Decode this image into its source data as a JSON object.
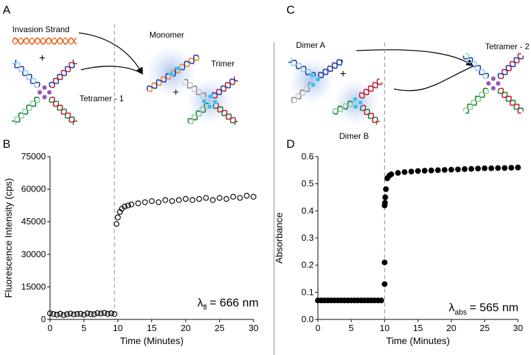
{
  "diagram": {
    "panel_a": "A",
    "panel_b": "B",
    "panel_c": "C",
    "panel_d": "D",
    "invasion_strand": "Invasion Strand",
    "plus": "+",
    "tetramer_1": "Tetramer - 1",
    "monomer": "Monomer",
    "trimer": "Trimer",
    "dimer_a": "Dimer A",
    "dimer_b": "Dimer B",
    "tetramer_2": "Tetramer - 2"
  },
  "chart_data": [
    {
      "type": "scatter",
      "panel": "B",
      "xlabel": "Time (Minutes)",
      "ylabel": "Fluorescence Intensity (cps)",
      "xlim": [
        0,
        30
      ],
      "xticks": [
        0,
        5,
        10,
        15,
        20,
        25,
        30
      ],
      "ylim": [
        0,
        75000
      ],
      "yticks": [
        0,
        15000,
        30000,
        45000,
        60000,
        75000
      ],
      "vline": 9.5,
      "marker": "open",
      "color": "#000000",
      "annotation": {
        "symbol": "λ",
        "subscript": "fl",
        "text": "= 666 nm"
      },
      "x": [
        0,
        0.5,
        1,
        1.5,
        2,
        2.5,
        3,
        3.5,
        4,
        4.5,
        5,
        5.5,
        6,
        6.5,
        7,
        7.5,
        8,
        8.5,
        9,
        9.5,
        9.8,
        10,
        10.3,
        10.6,
        11,
        11.5,
        12,
        13,
        14,
        15,
        16,
        17,
        18,
        19,
        20,
        21,
        22,
        23,
        24,
        25,
        26,
        27,
        28,
        29,
        30
      ],
      "y": [
        2800,
        2500,
        2200,
        2600,
        2000,
        2400,
        2700,
        2300,
        2500,
        2600,
        2200,
        2800,
        2500,
        2400,
        2900,
        2700,
        3000,
        2600,
        2800,
        2500,
        44000,
        47000,
        49500,
        51000,
        52000,
        52500,
        53000,
        53500,
        54000,
        54500,
        54000,
        55000,
        54500,
        55000,
        55500,
        55000,
        55500,
        56000,
        55000,
        56000,
        55500,
        56500,
        56000,
        57000,
        56500
      ]
    },
    {
      "type": "scatter",
      "panel": "D",
      "xlabel": "Time (Minutes)",
      "ylabel": "Absorbance",
      "xlim": [
        0,
        30
      ],
      "xticks": [
        0,
        5,
        10,
        15,
        20,
        25,
        30
      ],
      "ylim": [
        0,
        0.6
      ],
      "yticks": [
        {
          "value": 0,
          "label": "0.0"
        },
        0.1,
        0.2,
        0.3,
        0.4,
        0.5,
        0.6
      ],
      "vline": 10,
      "marker": "filled",
      "color": "#000000",
      "annotation": {
        "symbol": "λ",
        "subscript": "abs",
        "text": "= 565 nm"
      },
      "x": [
        0,
        0.5,
        1,
        1.5,
        2,
        2.5,
        3,
        3.5,
        4,
        4.5,
        5,
        5.5,
        6,
        6.5,
        7,
        7.5,
        8,
        8.5,
        9,
        9.5,
        10,
        10,
        10,
        10.05,
        10.1,
        10.2,
        10.4,
        10.7,
        11,
        12,
        13,
        14,
        15,
        16,
        17,
        18,
        19,
        20,
        21,
        22,
        23,
        24,
        25,
        26,
        27,
        28,
        29,
        30
      ],
      "y": [
        0.07,
        0.07,
        0.07,
        0.07,
        0.07,
        0.07,
        0.07,
        0.07,
        0.07,
        0.07,
        0.07,
        0.07,
        0.07,
        0.07,
        0.07,
        0.07,
        0.07,
        0.07,
        0.07,
        0.07,
        0.13,
        0.21,
        0.42,
        0.43,
        0.45,
        0.48,
        0.52,
        0.53,
        0.535,
        0.54,
        0.543,
        0.545,
        0.547,
        0.548,
        0.549,
        0.55,
        0.551,
        0.552,
        0.553,
        0.554,
        0.555,
        0.556,
        0.557,
        0.557,
        0.558,
        0.558,
        0.559,
        0.56
      ]
    }
  ]
}
